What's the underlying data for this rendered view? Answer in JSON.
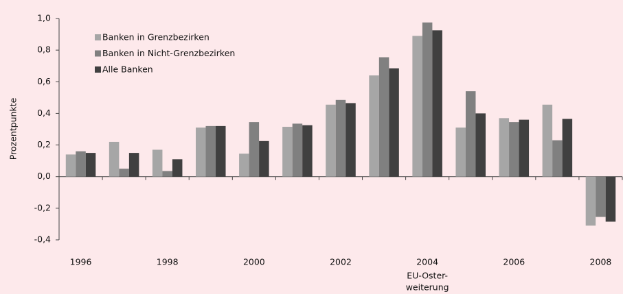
{
  "chart_data": {
    "type": "bar",
    "y_label": "Prozentpunkte",
    "categories": [
      "1996",
      null,
      "1998",
      null,
      "2000",
      null,
      "2002",
      null,
      "2004",
      null,
      "2006",
      null,
      "2008"
    ],
    "annotation": [
      "EU-Oster-",
      "weiterung"
    ],
    "series": [
      {
        "name": "Banken in Grenzbezirken",
        "color": "#a6a6a6",
        "values": [
          0.14,
          0.22,
          0.17,
          0.31,
          0.145,
          0.315,
          0.455,
          0.64,
          0.89,
          0.31,
          0.37,
          0.455,
          -0.31
        ]
      },
      {
        "name": "Banken in Nicht-Grenzbezirken",
        "color": "#808080",
        "values": [
          0.16,
          0.05,
          0.035,
          0.32,
          0.345,
          0.335,
          0.485,
          0.755,
          0.975,
          0.54,
          0.345,
          0.23,
          -0.255
        ]
      },
      {
        "name": "Alle Banken",
        "color": "#404040",
        "values": [
          0.15,
          0.15,
          0.11,
          0.32,
          0.225,
          0.325,
          0.465,
          0.685,
          0.925,
          0.4,
          0.36,
          0.365,
          -0.285
        ]
      }
    ],
    "ylim": [
      -0.4,
      1.0
    ],
    "yticks": [
      {
        "value": -0.4,
        "label": "-0,4"
      },
      {
        "value": -0.2,
        "label": "-0,2"
      },
      {
        "value": 0,
        "label": "0,0"
      },
      {
        "value": 0.2,
        "label": "0,2"
      },
      {
        "value": 0.4,
        "label": "0,4"
      },
      {
        "value": 0.6,
        "label": "0,6"
      },
      {
        "value": 0.8,
        "label": "0,8"
      },
      {
        "value": 1.0,
        "label": "1,0"
      }
    ],
    "legend": "top-left",
    "grid": false
  }
}
